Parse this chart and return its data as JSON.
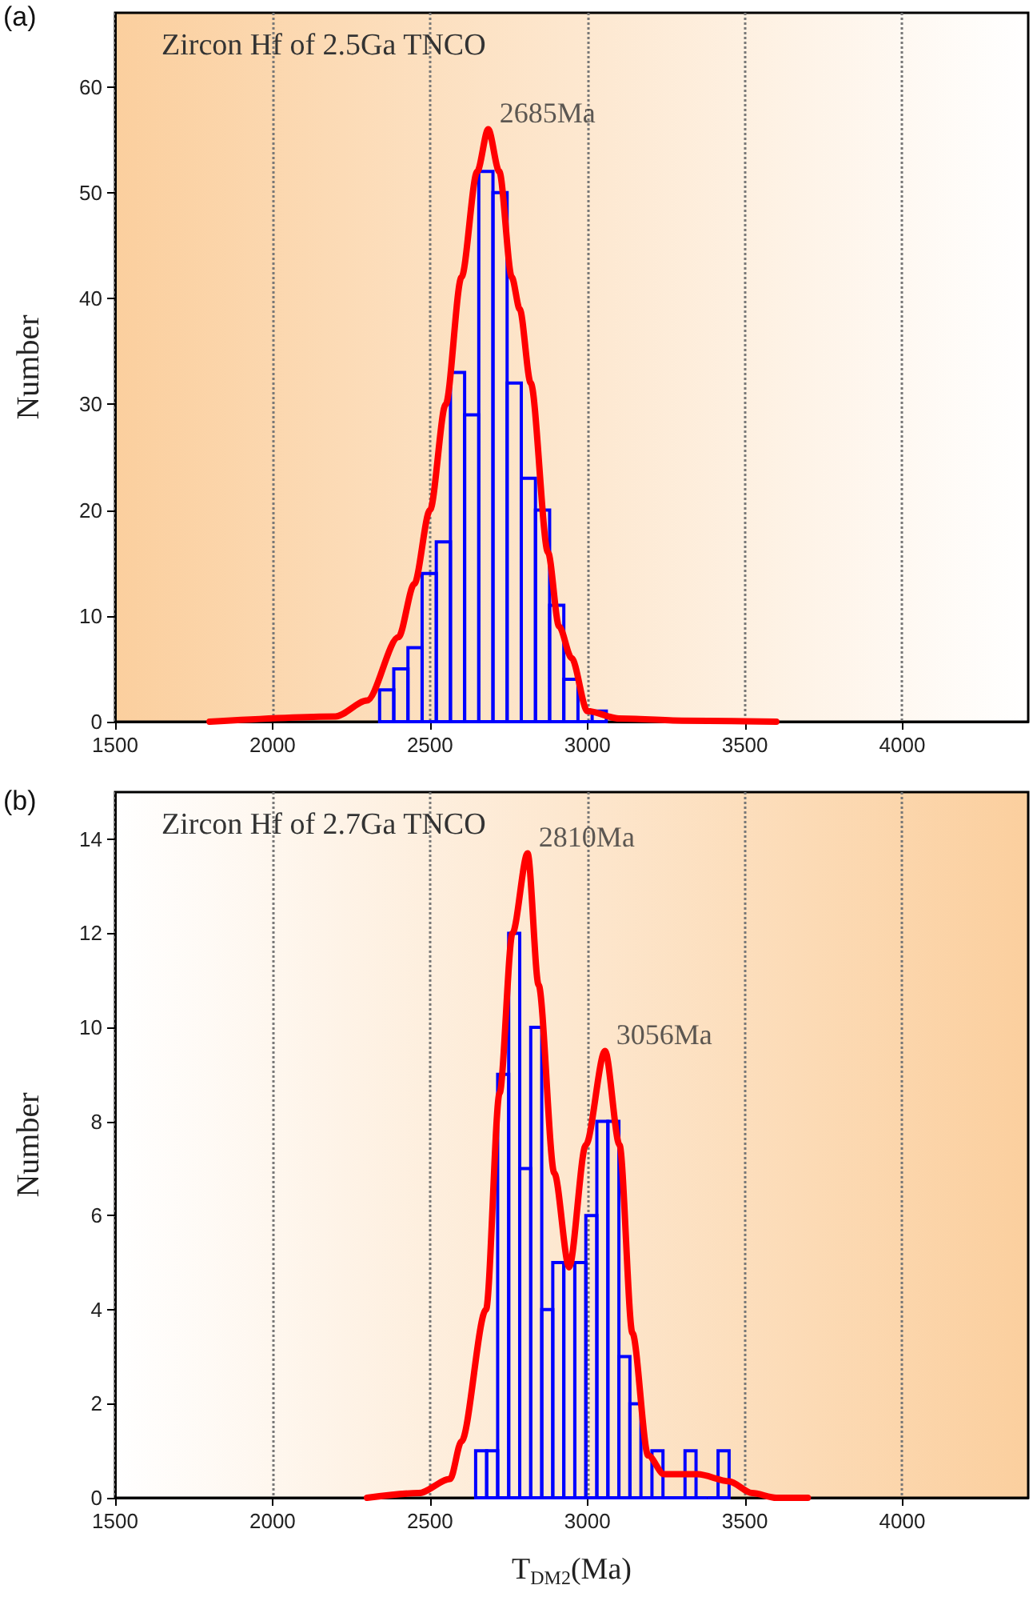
{
  "chart_data": [
    {
      "type": "histogram",
      "title": "Zircon Hf of 2.5Ga TNCO",
      "ylabel": "Number",
      "annotations": [
        "(a)",
        {
          "text": "2685Ma",
          "x": 2685,
          "y": 56
        }
      ],
      "bins": [
        2340,
        2385,
        2430,
        2475,
        2520,
        2565,
        2610,
        2655,
        2700,
        2745,
        2790,
        2835,
        2880,
        2925,
        2970,
        3015,
        3060
      ],
      "series": [
        {
          "color": "#0000ff",
          "values": [
            3,
            5,
            7,
            14,
            17,
            33,
            29,
            52,
            50,
            32,
            23,
            20,
            11,
            4,
            0,
            1
          ]
        },
        {
          "type": "line",
          "color": "#ff0000",
          "x": [
            1800,
            2200,
            2300,
            2400,
            2450,
            2500,
            2550,
            2600,
            2650,
            2685,
            2720,
            2760,
            2785,
            2820,
            2875,
            2910,
            2950,
            3000,
            3100,
            3300,
            3600
          ],
          "values": [
            0,
            0.5,
            2,
            8,
            13,
            20,
            30,
            42,
            52,
            56,
            52,
            42,
            39,
            32,
            16,
            9,
            6,
            1,
            0.3,
            0.1,
            0
          ]
        }
      ],
      "xlim": [
        1500,
        4400
      ],
      "xticks": [
        1500,
        2000,
        2500,
        3000,
        3500,
        4000
      ],
      "ylim": [
        0,
        67
      ],
      "yticks": [
        0,
        10,
        20,
        30,
        40,
        50,
        60
      ],
      "grid": "x",
      "marker": "none",
      "line_style": "solid"
    },
    {
      "type": "histogram",
      "title": "Zircon Hf of 2.7Ga TNCO",
      "xlabel": "T$_{DM2}$(Ma)",
      "ylabel": "Number",
      "annotations": [
        "(b)",
        {
          "text": "2810Ma",
          "x": 2810,
          "y": 13.7
        },
        {
          "text": "3056Ma",
          "x": 3056,
          "y": 9.5
        }
      ],
      "bins": [
        2645,
        2680,
        2715,
        2750,
        2785,
        2820,
        2855,
        2890,
        2925,
        2960,
        2995,
        3030,
        3065,
        3100,
        3135,
        3170,
        3205,
        3240,
        3275,
        3310,
        3345,
        3380,
        3415,
        3450
      ],
      "series": [
        {
          "color": "#0000ff",
          "values": [
            1,
            1,
            9,
            12,
            7,
            10,
            4,
            5,
            5,
            5,
            6,
            8,
            8,
            3,
            2,
            0,
            1,
            0,
            0,
            1,
            0,
            0,
            1
          ]
        },
        {
          "type": "line",
          "color": "#ff0000",
          "x": [
            2300,
            2464,
            2564,
            2600,
            2678,
            2721,
            2762,
            2810,
            2845,
            2895,
            2942,
            2995,
            3056,
            3102,
            3143,
            3193,
            3243,
            3350,
            3450,
            3523,
            3600,
            3700
          ],
          "values": [
            0,
            0.1,
            0.4,
            1.2,
            4,
            8.6,
            12,
            13.7,
            10.9,
            6.9,
            4.9,
            7.5,
            9.5,
            7.5,
            3.5,
            0.9,
            0.5,
            0.5,
            0.35,
            0.1,
            0,
            0
          ]
        }
      ],
      "xlim": [
        1500,
        4400
      ],
      "xticks": [
        1500,
        2000,
        2500,
        3000,
        3500,
        4000
      ],
      "ylim": [
        0,
        15
      ],
      "yticks": [
        0,
        2,
        4,
        6,
        8,
        10,
        12,
        14
      ],
      "grid": "x",
      "marker": "none",
      "line_style": "solid"
    }
  ]
}
